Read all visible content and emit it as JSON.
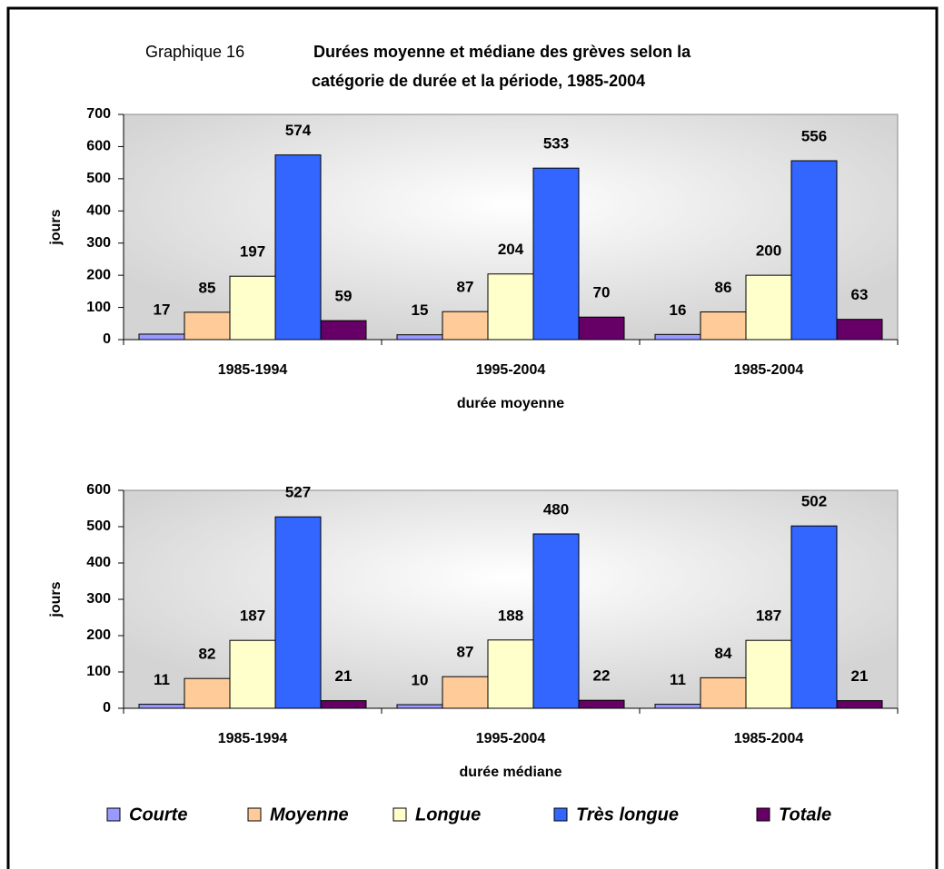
{
  "header": {
    "label": "Graphique 16",
    "title_lines": [
      "Durées moyenne et médiane des grèves selon la",
      "catégorie de durée et la période, 1985-2004"
    ]
  },
  "chart_data": [
    {
      "type": "bar",
      "x_label": "durée moyenne",
      "y_label": "jours",
      "categories": [
        "1985-1994",
        "1995-2004",
        "1985-2004"
      ],
      "ylim": [
        0,
        700
      ],
      "yticks": [
        0,
        100,
        200,
        300,
        400,
        500,
        600,
        700
      ],
      "series": [
        {
          "name": "Courte",
          "color": "#9999ff",
          "values": [
            17,
            15,
            16
          ]
        },
        {
          "name": "Moyenne",
          "color": "#ffcc99",
          "values": [
            85,
            87,
            86
          ]
        },
        {
          "name": "Longue",
          "color": "#ffffcc",
          "values": [
            197,
            204,
            200
          ]
        },
        {
          "name": "Très longue",
          "color": "#3366ff",
          "values": [
            574,
            533,
            556
          ]
        },
        {
          "name": "Totale",
          "color": "#660066",
          "values": [
            59,
            70,
            63
          ]
        }
      ]
    },
    {
      "type": "bar",
      "x_label": "durée médiane",
      "y_label": "jours",
      "categories": [
        "1985-1994",
        "1995-2004",
        "1985-2004"
      ],
      "ylim": [
        0,
        600
      ],
      "yticks": [
        0,
        100,
        200,
        300,
        400,
        500,
        600
      ],
      "series": [
        {
          "name": "Courte",
          "color": "#9999ff",
          "values": [
            11,
            10,
            11
          ]
        },
        {
          "name": "Moyenne",
          "color": "#ffcc99",
          "values": [
            82,
            87,
            84
          ]
        },
        {
          "name": "Longue",
          "color": "#ffffcc",
          "values": [
            187,
            188,
            187
          ]
        },
        {
          "name": "Très longue",
          "color": "#3366ff",
          "values": [
            527,
            480,
            502
          ]
        },
        {
          "name": "Totale",
          "color": "#660066",
          "values": [
            21,
            22,
            21
          ]
        }
      ]
    }
  ]
}
